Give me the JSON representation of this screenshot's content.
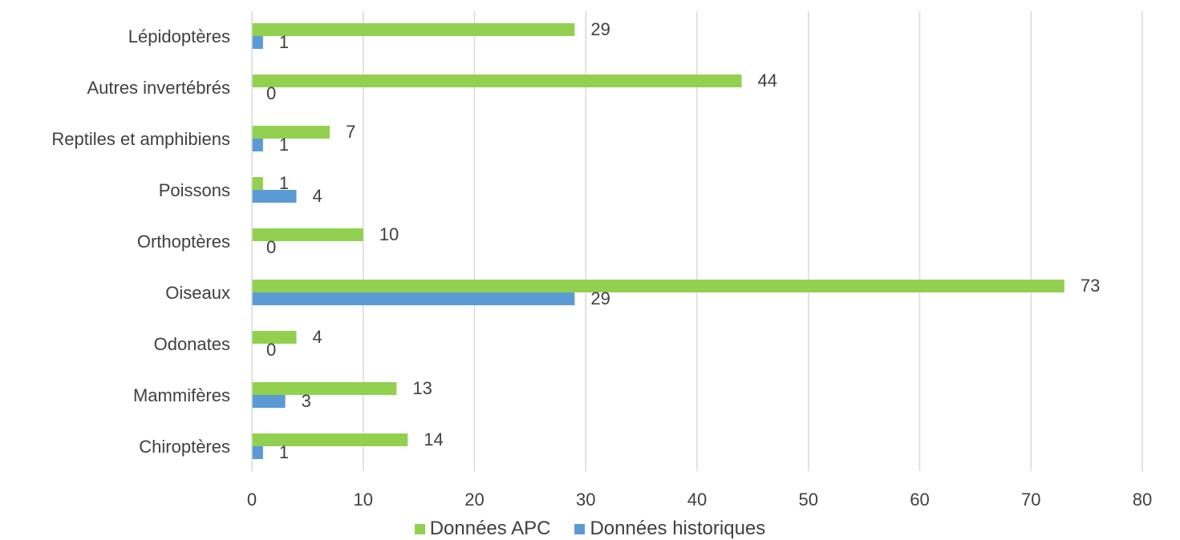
{
  "chart_data": {
    "type": "bar",
    "orientation": "horizontal",
    "categories": [
      "Lépidoptères",
      "Autres invertébrés",
      "Reptiles et amphibiens",
      "Poissons",
      "Orthoptères",
      "Oiseaux",
      "Odonates",
      "Mammifères",
      "Chiroptères"
    ],
    "series": [
      {
        "name": "Données APC",
        "color": "#92d050",
        "values": [
          29,
          44,
          7,
          1,
          10,
          73,
          4,
          13,
          14
        ]
      },
      {
        "name": "Données historiques",
        "color": "#5b9bd5",
        "values": [
          1,
          0,
          1,
          4,
          0,
          29,
          0,
          3,
          1
        ]
      }
    ],
    "xlim": [
      0,
      80
    ],
    "x_ticks": [
      "0",
      "10",
      "20",
      "30",
      "40",
      "50",
      "60",
      "70",
      "80"
    ],
    "grid": "vertical",
    "legend_position": "bottom"
  }
}
